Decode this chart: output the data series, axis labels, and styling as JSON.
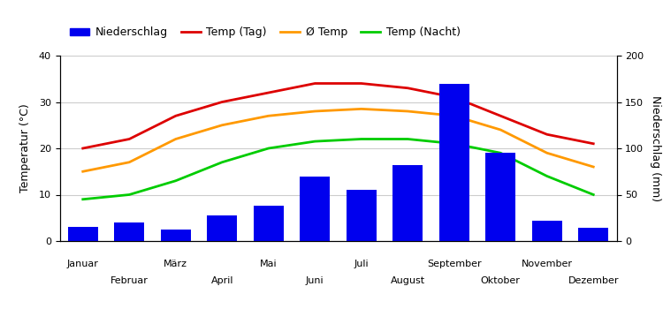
{
  "months": [
    "Januar",
    "Februar",
    "März",
    "April",
    "Mai",
    "Juni",
    "Juli",
    "August",
    "September",
    "Oktober",
    "November",
    "Dezember"
  ],
  "precipitation_mm": [
    15,
    20,
    12,
    28,
    38,
    70,
    55,
    82,
    170,
    95,
    22,
    14
  ],
  "temp_day": [
    20,
    22,
    27,
    30,
    32,
    34,
    34,
    33,
    31,
    27,
    23,
    21
  ],
  "temp_avg": [
    15,
    17,
    22,
    25,
    27,
    28,
    28.5,
    28,
    27,
    24,
    19,
    16
  ],
  "temp_night": [
    9,
    10,
    13,
    17,
    20,
    21.5,
    22,
    22,
    21,
    19,
    14,
    10
  ],
  "bar_color": "#0000ee",
  "color_temp_day": "#dd0000",
  "color_temp_avg": "#ff9900",
  "color_temp_night": "#00cc00",
  "ylabel_left": "Temperatur (°C)",
  "ylabel_right": "Niederschlag (mm)",
  "ylim_left": [
    0,
    40
  ],
  "ylim_right": [
    0,
    200
  ],
  "yticks_left": [
    0,
    10,
    20,
    30,
    40
  ],
  "yticks_right": [
    0,
    50,
    100,
    150,
    200
  ],
  "legend_labels": [
    "Niederschlag",
    "Temp (Tag)",
    "Ø Temp",
    "Temp (Nacht)"
  ],
  "background_color": "#ffffff",
  "grid_color": "#cccccc"
}
